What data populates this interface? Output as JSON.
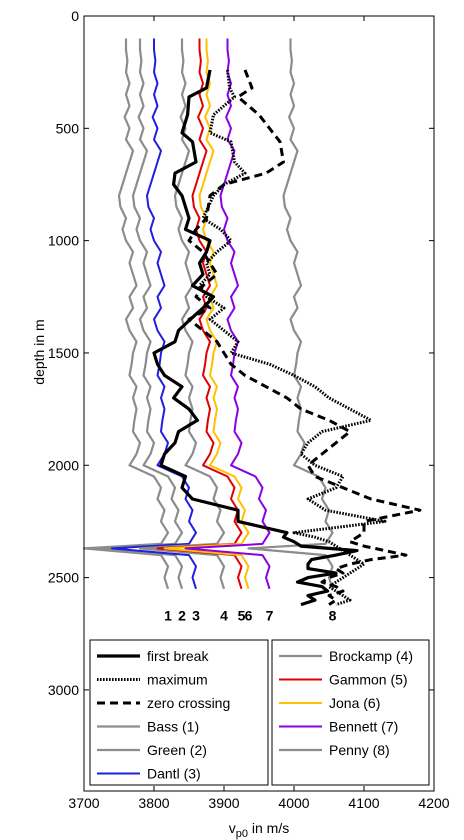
{
  "chart_data": {
    "type": "line",
    "xlabel": "v_p0 in m/s",
    "xlabel_main": "v",
    "xlabel_sub": "p0",
    "xlabel_rest": " in m/s",
    "ylabel": "depth in m",
    "xlim": [
      3700,
      4200
    ],
    "ylim": [
      0,
      3450
    ],
    "y_reversed": true,
    "grid": false,
    "xticks": [
      3700,
      3800,
      3900,
      4000,
      4100,
      4200
    ],
    "yticks": [
      0,
      500,
      1000,
      1500,
      2000,
      2500,
      3000
    ],
    "legend_position": "bottom",
    "series": [
      {
        "name": "first break",
        "color": "#000000",
        "width": 3.2,
        "dash": "",
        "x": [
          3880,
          3875,
          3850,
          3848,
          3840,
          3855,
          3860,
          3830,
          3828,
          3840,
          3850,
          3845,
          3880,
          3875,
          3865,
          3870,
          3855,
          3885,
          3870,
          3852,
          3835,
          3830,
          3800,
          3805,
          3815,
          3840,
          3828,
          3850,
          3862,
          3835,
          3830,
          3815,
          3810,
          3845,
          3840,
          3855,
          3920,
          3920,
          3990,
          3985,
          4000,
          4010,
          4090,
          4060,
          4025,
          4020,
          4020,
          4060,
          4020,
          4005,
          4040,
          4048,
          4020,
          4030,
          4010
        ],
        "y": [
          240,
          320,
          360,
          440,
          520,
          560,
          650,
          700,
          750,
          800,
          900,
          950,
          1000,
          1050,
          1100,
          1150,
          1200,
          1250,
          1300,
          1350,
          1400,
          1450,
          1500,
          1550,
          1600,
          1650,
          1700,
          1750,
          1800,
          1850,
          1900,
          1950,
          2000,
          2050,
          2100,
          2150,
          2200,
          2250,
          2300,
          2320,
          2340,
          2360,
          2380,
          2400,
          2420,
          2440,
          2460,
          2480,
          2500,
          2520,
          2540,
          2560,
          2580,
          2600,
          2620
        ]
      },
      {
        "name": "maximum",
        "color": "#000000",
        "width": 3.0,
        "dash": "1.6 1.4",
        "x": [
          3905,
          3908,
          3915,
          3885,
          3880,
          3910,
          3915,
          3930,
          3900,
          3885,
          3870,
          3895,
          3910,
          3890,
          3875,
          3880,
          3865,
          3875,
          3900,
          3880,
          3900,
          3920,
          3910,
          3965,
          4000,
          4030,
          4050,
          4080,
          4110,
          4040,
          4020,
          4010,
          4030,
          4070,
          4060,
          4020,
          4045,
          4130,
          4000,
          4030,
          4050,
          4060,
          4070,
          4080,
          4090,
          4100,
          4090,
          4080,
          4070,
          4060,
          4050,
          4060,
          4070,
          4080,
          4060
        ],
        "y": [
          240,
          320,
          360,
          440,
          520,
          560,
          650,
          700,
          750,
          800,
          900,
          950,
          1000,
          1050,
          1100,
          1150,
          1200,
          1250,
          1300,
          1350,
          1400,
          1450,
          1500,
          1550,
          1600,
          1650,
          1700,
          1750,
          1800,
          1850,
          1900,
          1950,
          2000,
          2050,
          2100,
          2150,
          2200,
          2250,
          2300,
          2320,
          2340,
          2360,
          2380,
          2400,
          2420,
          2440,
          2460,
          2480,
          2500,
          2520,
          2540,
          2560,
          2580,
          2600,
          2620
        ]
      },
      {
        "name": "zero crossing",
        "color": "#000000",
        "width": 3.0,
        "dash": "8 5",
        "x": [
          3930,
          3940,
          3920,
          3950,
          3970,
          3980,
          3985,
          3960,
          3900,
          3880,
          3875,
          3860,
          3850,
          3870,
          3880,
          3890,
          3870,
          3860,
          3880,
          3850,
          3870,
          3890,
          3900,
          3910,
          3930,
          3960,
          3990,
          4010,
          4050,
          4080,
          4060,
          4040,
          4020,
          4030,
          4070,
          4110,
          4180,
          4100,
          4100,
          4090,
          4080,
          4100,
          4130,
          4160,
          4110,
          4080,
          4060,
          4070,
          4050,
          4040,
          4060,
          4070,
          4050,
          4060,
          4050
        ],
        "y": [
          240,
          320,
          360,
          440,
          520,
          560,
          650,
          700,
          750,
          800,
          900,
          950,
          1000,
          1050,
          1100,
          1150,
          1200,
          1250,
          1300,
          1350,
          1400,
          1450,
          1500,
          1550,
          1600,
          1650,
          1700,
          1750,
          1800,
          1850,
          1900,
          1950,
          2000,
          2050,
          2100,
          2150,
          2200,
          2250,
          2300,
          2320,
          2340,
          2360,
          2380,
          2400,
          2420,
          2440,
          2460,
          2480,
          2500,
          2520,
          2540,
          2560,
          2580,
          2600,
          2620
        ]
      },
      {
        "name": "Bass (1)",
        "color": "#8c8c8c",
        "width": 2.2,
        "dash": "",
        "label": "1",
        "offset": -40
      },
      {
        "name": "Green (2)",
        "color": "#8c8c8c",
        "width": 2.2,
        "dash": "",
        "label": "2",
        "offset": -20
      },
      {
        "name": "Dantl (3)",
        "color": "#1f1fe0",
        "width": 2.0,
        "dash": "",
        "label": "3",
        "offset": 0
      },
      {
        "name": "Brockamp (4)",
        "color": "#8c8c8c",
        "width": 2.2,
        "dash": "",
        "label": "4",
        "offset": 40
      },
      {
        "name": "Gammon (5)",
        "color": "#e00000",
        "width": 2.0,
        "dash": "",
        "label": "5",
        "offset": 65
      },
      {
        "name": "Jona (6)",
        "color": "#ffc000",
        "width": 2.0,
        "dash": "",
        "label": "6",
        "offset": 75
      },
      {
        "name": "Bennett (7)",
        "color": "#8a00e0",
        "width": 2.0,
        "dash": "",
        "label": "7",
        "offset": 105
      },
      {
        "name": "Penny (8)",
        "color": "#8c8c8c",
        "width": 2.2,
        "dash": "",
        "label": "8",
        "offset": 195
      }
    ],
    "well_base_profile": {
      "depths": [
        100,
        150,
        200,
        250,
        300,
        350,
        400,
        450,
        500,
        550,
        600,
        650,
        700,
        750,
        800,
        850,
        900,
        950,
        1000,
        1050,
        1100,
        1150,
        1200,
        1250,
        1300,
        1350,
        1400,
        1450,
        1500,
        1550,
        1600,
        1650,
        1700,
        1750,
        1800,
        1850,
        1900,
        1950,
        2000,
        2050,
        2100,
        2150,
        2200,
        2250,
        2300,
        2350,
        2370,
        2400,
        2450,
        2500,
        2550
      ],
      "x": [
        3800,
        3800,
        3802,
        3800,
        3805,
        3800,
        3805,
        3798,
        3805,
        3800,
        3810,
        3805,
        3800,
        3795,
        3790,
        3792,
        3800,
        3795,
        3800,
        3810,
        3805,
        3810,
        3815,
        3805,
        3810,
        3800,
        3805,
        3815,
        3810,
        3808,
        3805,
        3815,
        3810,
        3815,
        3812,
        3810,
        3820,
        3815,
        3805,
        3840,
        3850,
        3845,
        3855,
        3850,
        3860,
        3850,
        3740,
        3850,
        3860,
        3855,
        3860
      ]
    }
  }
}
